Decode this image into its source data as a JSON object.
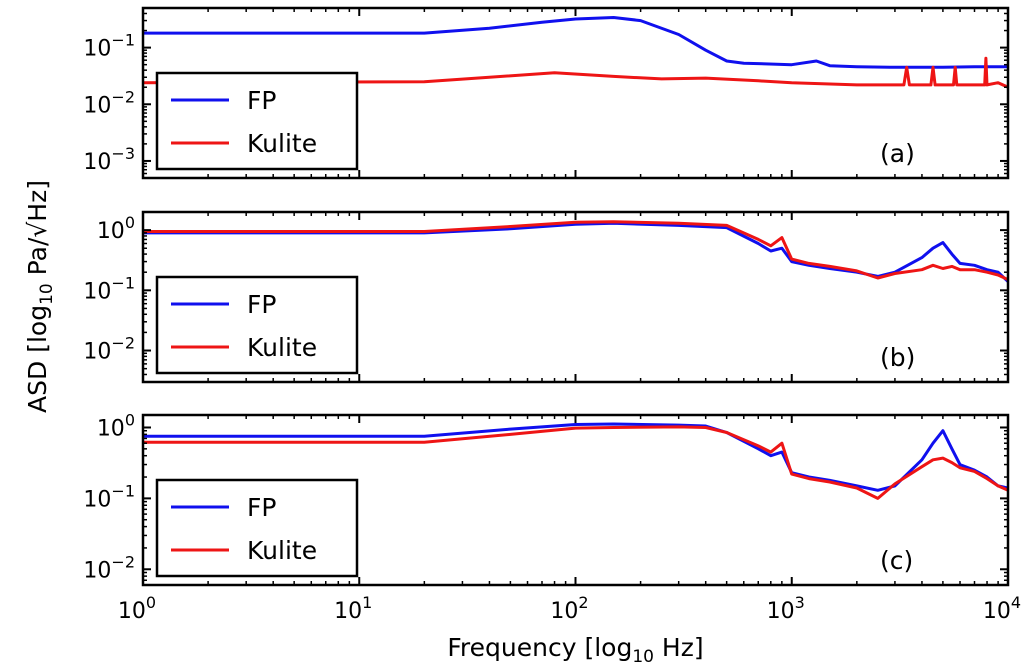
{
  "chart_data": {
    "type": "line",
    "x_scale": "log",
    "y_scale": "log",
    "xlabel": "Frequency [log10 Hz]",
    "ylabel": "ASD [log10 Pa/√Hz]",
    "xlim": [
      1,
      10000
    ],
    "x_ticks": [
      1,
      10,
      100,
      1000,
      10000
    ],
    "x_tick_labels": [
      {
        "base": "10",
        "exp": "0"
      },
      {
        "base": "10",
        "exp": "1"
      },
      {
        "base": "10",
        "exp": "2"
      },
      {
        "base": "10",
        "exp": "3"
      },
      {
        "base": "10",
        "exp": "4"
      }
    ],
    "legend": {
      "placement": "lower-left",
      "entries": [
        "FP",
        "Kulite"
      ]
    },
    "colors": {
      "FP": "#1010ee",
      "Kulite": "#ee1515"
    },
    "panels": [
      {
        "label": "(a)",
        "ylim": [
          0.0005,
          0.5
        ],
        "y_ticks": [
          0.001,
          0.01,
          0.1
        ],
        "y_tick_labels": [
          {
            "base": "10",
            "exp": "−3"
          },
          {
            "base": "10",
            "exp": "−2"
          },
          {
            "base": "10",
            "exp": "−1"
          }
        ],
        "series": [
          {
            "name": "FP",
            "x": [
              1,
              20,
              40,
              70,
              100,
              150,
              200,
              300,
              400,
              500,
              600,
              1000,
              1300,
              1500,
              2000,
              3000,
              5000,
              7000,
              10000
            ],
            "y": [
              0.18,
              0.18,
              0.22,
              0.28,
              0.32,
              0.34,
              0.3,
              0.17,
              0.09,
              0.058,
              0.053,
              0.05,
              0.058,
              0.048,
              0.046,
              0.045,
              0.045,
              0.046,
              0.046
            ]
          },
          {
            "name": "Kulite",
            "x": [
              1,
              20,
              40,
              80,
              150,
              250,
              400,
              700,
              1000,
              2000,
              3300,
              3400,
              3500,
              4400,
              4500,
              4600,
              5600,
              5700,
              5800,
              7800,
              7900,
              8000,
              9000,
              10000
            ],
            "y": [
              0.024,
              0.025,
              0.03,
              0.036,
              0.031,
              0.028,
              0.029,
              0.026,
              0.024,
              0.022,
              0.022,
              0.045,
              0.022,
              0.022,
              0.045,
              0.022,
              0.022,
              0.045,
              0.022,
              0.022,
              0.065,
              0.022,
              0.024,
              0.02
            ]
          }
        ]
      },
      {
        "label": "(b)",
        "ylim": [
          0.003,
          2
        ],
        "y_ticks": [
          0.01,
          0.1,
          1
        ],
        "y_tick_labels": [
          {
            "base": "10",
            "exp": "−2"
          },
          {
            "base": "10",
            "exp": "−1"
          },
          {
            "base": "10",
            "exp": "0"
          }
        ],
        "series": [
          {
            "name": "FP",
            "x": [
              1,
              20,
              50,
              100,
              150,
              300,
              500,
              700,
              800,
              900,
              1000,
              1200,
              1500,
              2000,
              2500,
              3000,
              4000,
              4500,
              5000,
              5500,
              6000,
              7000,
              8000,
              9000,
              10000
            ],
            "y": [
              0.9,
              0.9,
              1.05,
              1.25,
              1.3,
              1.2,
              1.1,
              0.6,
              0.45,
              0.5,
              0.3,
              0.26,
              0.23,
              0.2,
              0.17,
              0.2,
              0.35,
              0.5,
              0.62,
              0.4,
              0.28,
              0.26,
              0.22,
              0.2,
              0.14
            ]
          },
          {
            "name": "Kulite",
            "x": [
              1,
              20,
              50,
              100,
              150,
              300,
              500,
              700,
              800,
              900,
              1000,
              1200,
              1500,
              2000,
              2500,
              3000,
              4000,
              4500,
              5000,
              5500,
              6000,
              7000,
              8000,
              9000,
              10000
            ],
            "y": [
              0.95,
              0.95,
              1.15,
              1.35,
              1.38,
              1.3,
              1.2,
              0.7,
              0.55,
              0.75,
              0.33,
              0.28,
              0.25,
              0.21,
              0.16,
              0.19,
              0.22,
              0.26,
              0.23,
              0.25,
              0.22,
              0.22,
              0.2,
              0.18,
              0.15
            ]
          }
        ]
      },
      {
        "label": "(c)",
        "ylim": [
          0.006,
          1.5
        ],
        "y_ticks": [
          0.01,
          0.1,
          1
        ],
        "y_tick_labels": [
          {
            "base": "10",
            "exp": "−2"
          },
          {
            "base": "10",
            "exp": "−1"
          },
          {
            "base": "10",
            "exp": "0"
          }
        ],
        "series": [
          {
            "name": "FP",
            "x": [
              1,
              20,
              50,
              100,
              150,
              300,
              400,
              500,
              700,
              800,
              900,
              1000,
              1200,
              1500,
              2000,
              2500,
              3000,
              4000,
              4500,
              5000,
              5500,
              6000,
              7000,
              8000,
              9000,
              10000
            ],
            "y": [
              0.75,
              0.75,
              0.95,
              1.1,
              1.12,
              1.08,
              1.05,
              0.85,
              0.5,
              0.4,
              0.45,
              0.23,
              0.2,
              0.18,
              0.15,
              0.13,
              0.15,
              0.35,
              0.6,
              0.9,
              0.5,
              0.3,
              0.25,
              0.2,
              0.15,
              0.14
            ]
          },
          {
            "name": "Kulite",
            "x": [
              1,
              20,
              50,
              100,
              150,
              300,
              400,
              500,
              700,
              800,
              900,
              1000,
              1200,
              1500,
              2000,
              2500,
              3000,
              4000,
              4500,
              5000,
              5500,
              6000,
              7000,
              8000,
              9000,
              10000
            ],
            "y": [
              0.62,
              0.62,
              0.8,
              0.98,
              1.0,
              1.02,
              1.0,
              0.85,
              0.55,
              0.45,
              0.6,
              0.22,
              0.19,
              0.17,
              0.14,
              0.1,
              0.16,
              0.28,
              0.35,
              0.37,
              0.32,
              0.27,
              0.24,
              0.19,
              0.15,
              0.13
            ]
          }
        ]
      }
    ]
  }
}
